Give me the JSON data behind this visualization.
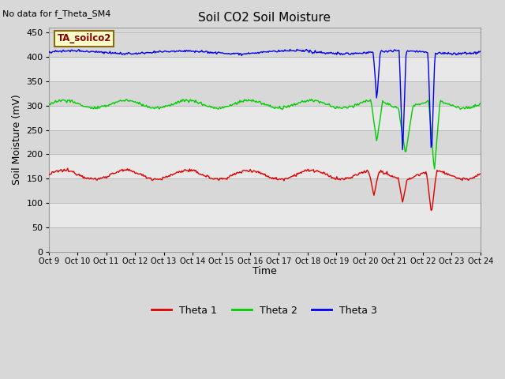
{
  "title": "Soil CO2 Soil Moisture",
  "no_data_text": "No data for f_Theta_SM4",
  "label_box_text": "TA_soilco2",
  "ylabel": "Soil Moisture (mV)",
  "xlabel": "Time",
  "ylim": [
    0,
    460
  ],
  "yticks": [
    0,
    50,
    100,
    150,
    200,
    250,
    300,
    350,
    400,
    450
  ],
  "x_tick_labels": [
    "Oct 9",
    "Oct 10",
    "Oct 11",
    "Oct 12",
    "Oct 13",
    "Oct 14",
    "Oct 15",
    "Oct 16",
    "Oct 17",
    "Oct 18",
    "Oct 19",
    "Oct 20",
    "Oct 21",
    "Oct 22",
    "Oct 23",
    "Oct 24"
  ],
  "bg_color": "#d8d8d8",
  "plot_bg_color": "#d8d8d8",
  "band_color": "#e8e8e8",
  "line_colors": [
    "#dd0000",
    "#00cc00",
    "#0000ee"
  ],
  "legend_labels": [
    "Theta 1",
    "Theta 2",
    "Theta 3"
  ],
  "theta1_base": 158,
  "theta2_base": 303,
  "theta3_base": 410,
  "num_points": 500
}
